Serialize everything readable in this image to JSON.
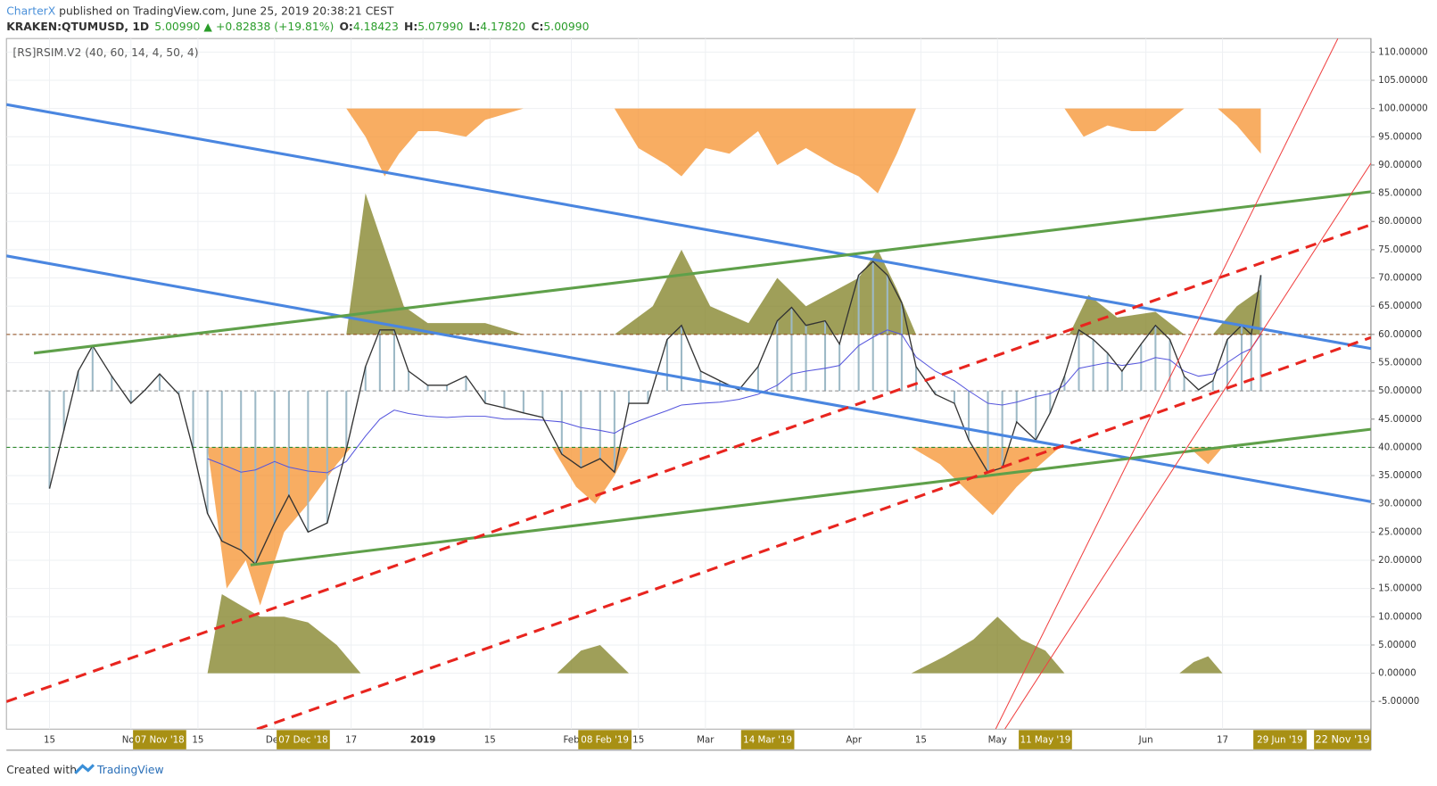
{
  "header": {
    "author": "CharterX",
    "published": " published on TradingView.com, June 25, 2019 20:38:21 CEST",
    "symbol": "KRAKEN:QTUMUSD, 1D",
    "last": "5.00990",
    "arrow": "▲",
    "change": "+0.82838 (+19.81%)",
    "o_label": "O:",
    "o": "4.18423",
    "h_label": "H:",
    "h": "5.07990",
    "l_label": "L:",
    "l": "4.17820",
    "c_label": "C:",
    "c": "5.00990"
  },
  "footer": {
    "created": "Created with",
    "brand": "TradingView"
  },
  "chart_data": {
    "type": "line",
    "title": "[RS]RSIM.V2 (40, 60, 14, 4, 50, 4)",
    "xlim": [
      "2018-10-06",
      "2019-07-18"
    ],
    "ylim": [
      -9.9,
      112.4
    ],
    "yticks": [
      {
        "value": 110,
        "label": "110.00000"
      },
      {
        "value": 105,
        "label": "105.00000"
      },
      {
        "value": 100,
        "label": "100.00000"
      },
      {
        "value": 95,
        "label": "95.00000"
      },
      {
        "value": 90,
        "label": "90.00000"
      },
      {
        "value": 85,
        "label": "85.00000"
      },
      {
        "value": 80,
        "label": "80.00000"
      },
      {
        "value": 75,
        "label": "75.00000"
      },
      {
        "value": 70,
        "label": "70.00000"
      },
      {
        "value": 65,
        "label": "65.00000"
      },
      {
        "value": 60,
        "label": "60.00000"
      },
      {
        "value": 55,
        "label": "55.00000"
      },
      {
        "value": 50,
        "label": "50.00000"
      },
      {
        "value": 45,
        "label": "45.00000"
      },
      {
        "value": 40,
        "label": "40.00000"
      },
      {
        "value": 35,
        "label": "35.00000"
      },
      {
        "value": 30,
        "label": "30.00000"
      },
      {
        "value": 25,
        "label": "25.00000"
      },
      {
        "value": 20,
        "label": "20.00000"
      },
      {
        "value": 15,
        "label": "15.00000"
      },
      {
        "value": 10,
        "label": "10.00000"
      },
      {
        "value": 5,
        "label": "5.00000"
      },
      {
        "value": 0,
        "label": "0.00000"
      },
      {
        "value": -5,
        "label": "-5.00000"
      }
    ],
    "xticks": [
      {
        "value": "2018-10-15",
        "label": "15"
      },
      {
        "value": "2018-11-01",
        "label": "Nov"
      },
      {
        "value": "2018-11-15",
        "label": "15"
      },
      {
        "value": "2018-12-01",
        "label": "Dec"
      },
      {
        "value": "2018-12-17",
        "label": "17"
      },
      {
        "value": "2019-01-01",
        "label": "2019"
      },
      {
        "value": "2019-01-15",
        "label": "15"
      },
      {
        "value": "2019-02-01",
        "label": "Feb"
      },
      {
        "value": "2019-02-15",
        "label": "15"
      },
      {
        "value": "2019-03-01",
        "label": "Mar"
      },
      {
        "value": "2019-04-01",
        "label": "Apr"
      },
      {
        "value": "2019-04-15",
        "label": "15"
      },
      {
        "value": "2019-05-01",
        "label": "May"
      },
      {
        "value": "2019-06-01",
        "label": "Jun"
      },
      {
        "value": "2019-06-17",
        "label": "17"
      }
    ],
    "highlight_xticks": [
      {
        "value": "2018-11-07",
        "label": "07 Nov '18"
      },
      {
        "value": "2018-12-07",
        "label": "07 Dec '18"
      },
      {
        "value": "2019-02-08",
        "label": "08 Feb '19"
      },
      {
        "value": "2019-03-14",
        "label": "14 Mar '19"
      },
      {
        "value": "2019-05-11",
        "label": "11 May '19"
      },
      {
        "value": "2019-06-29",
        "label": "29 Jun '19"
      }
    ],
    "offscreen_label": "22 Nov '19",
    "levels": [
      {
        "value": 60,
        "color": "#8b4513"
      },
      {
        "value": 50,
        "color": "#888888"
      },
      {
        "value": 40,
        "color": "#2e8b2e"
      }
    ],
    "histogram_color": "#9db9c6",
    "x": [
      "2018-10-15",
      "2018-10-18",
      "2018-10-21",
      "2018-10-24",
      "2018-10-28",
      "2018-11-01",
      "2018-11-04",
      "2018-11-07",
      "2018-11-11",
      "2018-11-14",
      "2018-11-17",
      "2018-11-20",
      "2018-11-24",
      "2018-11-27",
      "2018-12-01",
      "2018-12-04",
      "2018-12-08",
      "2018-12-12",
      "2018-12-16",
      "2018-12-20",
      "2018-12-23",
      "2018-12-26",
      "2018-12-29",
      "2019-01-02",
      "2019-01-06",
      "2019-01-10",
      "2019-01-14",
      "2019-01-18",
      "2019-01-22",
      "2019-01-26",
      "2019-01-30",
      "2019-02-03",
      "2019-02-07",
      "2019-02-10",
      "2019-02-13",
      "2019-02-17",
      "2019-02-21",
      "2019-02-24",
      "2019-02-28",
      "2019-03-04",
      "2019-03-08",
      "2019-03-12",
      "2019-03-16",
      "2019-03-19",
      "2019-03-22",
      "2019-03-26",
      "2019-03-29",
      "2019-04-02",
      "2019-04-05",
      "2019-04-08",
      "2019-04-11",
      "2019-04-14",
      "2019-04-18",
      "2019-04-22",
      "2019-04-25",
      "2019-04-29",
      "2019-05-02",
      "2019-05-05",
      "2019-05-09",
      "2019-05-12",
      "2019-05-15",
      "2019-05-18",
      "2019-05-21",
      "2019-05-24",
      "2019-05-27",
      "2019-05-31",
      "2019-06-03",
      "2019-06-06",
      "2019-06-09",
      "2019-06-12",
      "2019-06-15",
      "2019-06-18",
      "2019-06-21",
      "2019-06-23",
      "2019-06-25"
    ],
    "series": [
      {
        "color": "#333333",
        "values": [
          32.7,
          43,
          53.5,
          58,
          52.6,
          47.8,
          50.2,
          53,
          49.4,
          39.6,
          28.3,
          23.4,
          21.8,
          19.3,
          26.6,
          31.5,
          25,
          26.6,
          39.6,
          54.3,
          60.8,
          60.8,
          53.5,
          51,
          51,
          52.6,
          47.8,
          47,
          46.1,
          45.3,
          38.8,
          36.4,
          38,
          35.6,
          47.8,
          47.8,
          59.1,
          61.6,
          53.5,
          51.8,
          50.2,
          54.3,
          62.4,
          64.8,
          61.6,
          62.4,
          58.3,
          70.5,
          72.9,
          70.5,
          65.6,
          54.3,
          49.4,
          47.8,
          41.3,
          35.6,
          36.4,
          44.5,
          41.3,
          46.1,
          52.6,
          60.8,
          59.1,
          56.7,
          53.5,
          58.3,
          61.6,
          59.1,
          52.6,
          50.2,
          51.8,
          59.1,
          61.6,
          60,
          70.5
        ]
      },
      {
        "color": "#5555dd",
        "values": [
          null,
          null,
          null,
          null,
          null,
          null,
          null,
          null,
          null,
          null,
          38,
          37,
          35.6,
          36,
          37.5,
          36.5,
          35.8,
          35.5,
          37.5,
          42,
          45,
          46.6,
          46,
          45.5,
          45.3,
          45.5,
          45.5,
          45,
          45,
          44.8,
          44.5,
          43.5,
          43,
          42.5,
          44,
          45.3,
          46.5,
          47.5,
          47.8,
          48,
          48.5,
          49.4,
          51,
          53,
          53.5,
          54,
          54.5,
          58,
          59.5,
          60.8,
          60,
          56,
          53.5,
          51.8,
          50,
          47.8,
          47.5,
          48,
          49,
          49.5,
          51,
          54,
          54.5,
          55,
          54.5,
          55,
          55.9,
          55.5,
          53.5,
          52.6,
          53,
          55,
          56.7,
          57.5,
          60
        ]
      }
    ],
    "areas": [
      {
        "color": "#f5922e",
        "base": 100,
        "x": [
          "2018-12-16",
          "2018-12-20",
          "2018-12-24",
          "2018-12-27",
          "2018-12-31",
          "2019-01-04",
          "2019-01-10",
          "2019-01-14",
          "2019-01-22",
          "2019-02-01"
        ],
        "values": [
          100,
          95,
          88,
          92,
          96,
          96,
          95,
          98,
          100,
          100
        ]
      },
      {
        "color": "#f5922e",
        "base": 100,
        "x": [
          "2019-02-10",
          "2019-02-15",
          "2019-02-21",
          "2019-02-24",
          "2019-03-01",
          "2019-03-06",
          "2019-03-12",
          "2019-03-16",
          "2019-03-22",
          "2019-03-28",
          "2019-04-02",
          "2019-04-06",
          "2019-04-10",
          "2019-04-14"
        ],
        "values": [
          100,
          93,
          90,
          88,
          93,
          92,
          96,
          90,
          93,
          90,
          88,
          85,
          92,
          100
        ]
      },
      {
        "color": "#f5922e",
        "base": 100,
        "x": [
          "2019-05-15",
          "2019-05-19",
          "2019-05-24",
          "2019-05-29",
          "2019-06-03",
          "2019-06-09"
        ],
        "values": [
          100,
          95,
          97,
          96,
          96,
          100
        ]
      },
      {
        "color": "#f5922e",
        "base": 100,
        "x": [
          "2019-06-16",
          "2019-06-20",
          "2019-06-25"
        ],
        "values": [
          100,
          97,
          92
        ]
      },
      {
        "color": "#7f7f22",
        "base": 60,
        "x": [
          "2018-12-16",
          "2018-12-20",
          "2018-12-24",
          "2018-12-28",
          "2019-01-02",
          "2019-01-14",
          "2019-01-22"
        ],
        "values": [
          60,
          85,
          75,
          65,
          62,
          62,
          60
        ]
      },
      {
        "color": "#7f7f22",
        "base": 60,
        "x": [
          "2019-02-10",
          "2019-02-18",
          "2019-02-24",
          "2019-03-02",
          "2019-03-10",
          "2019-03-16",
          "2019-03-22",
          "2019-04-02",
          "2019-04-06",
          "2019-04-10",
          "2019-04-14"
        ],
        "values": [
          60,
          65,
          75,
          65,
          62,
          70,
          65,
          70,
          75,
          68,
          60
        ]
      },
      {
        "color": "#7f7f22",
        "base": 60,
        "x": [
          "2019-05-16",
          "2019-05-20",
          "2019-05-26",
          "2019-06-03",
          "2019-06-09"
        ],
        "values": [
          60,
          67,
          63,
          64,
          60
        ]
      },
      {
        "color": "#7f7f22",
        "base": 60,
        "x": [
          "2019-06-15",
          "2019-06-20",
          "2019-06-25"
        ],
        "values": [
          60,
          65,
          68
        ]
      },
      {
        "color": "#f5922e",
        "base": 40,
        "x": [
          "2018-11-17",
          "2018-11-21",
          "2018-11-25",
          "2018-11-28",
          "2018-12-03",
          "2018-12-08",
          "2018-12-14",
          "2018-12-17"
        ],
        "values": [
          40,
          15,
          20,
          12,
          25,
          30,
          37,
          40
        ]
      },
      {
        "color": "#f5922e",
        "base": 40,
        "x": [
          "2019-01-28",
          "2019-02-02",
          "2019-02-06",
          "2019-02-10",
          "2019-02-13"
        ],
        "values": [
          40,
          33,
          30,
          35,
          40
        ]
      },
      {
        "color": "#f5922e",
        "base": 40,
        "x": [
          "2019-04-13",
          "2019-04-19",
          "2019-04-25",
          "2019-04-30",
          "2019-05-05",
          "2019-05-10",
          "2019-05-14"
        ],
        "values": [
          40,
          37,
          32,
          28,
          33,
          37,
          40
        ]
      },
      {
        "color": "#f5922e",
        "base": 40,
        "x": [
          "2019-06-10",
          "2019-06-14",
          "2019-06-17"
        ],
        "values": [
          40,
          37,
          40
        ]
      },
      {
        "color": "#7f7f22",
        "base": 0,
        "x": [
          "2018-11-17",
          "2018-11-20",
          "2018-11-24",
          "2018-11-28",
          "2018-12-03",
          "2018-12-08",
          "2018-12-14",
          "2018-12-19"
        ],
        "values": [
          0,
          14,
          12,
          10,
          10,
          9,
          5,
          0
        ]
      },
      {
        "color": "#7f7f22",
        "base": 0,
        "x": [
          "2019-01-29",
          "2019-02-03",
          "2019-02-07",
          "2019-02-13"
        ],
        "values": [
          0,
          4,
          5,
          0
        ]
      },
      {
        "color": "#7f7f22",
        "base": 0,
        "x": [
          "2019-04-13",
          "2019-04-20",
          "2019-04-26",
          "2019-05-01",
          "2019-05-06",
          "2019-05-11",
          "2019-05-15"
        ],
        "values": [
          0,
          3,
          6,
          10,
          6,
          4,
          0
        ]
      },
      {
        "color": "#7f7f22",
        "base": 0,
        "x": [
          "2019-06-08",
          "2019-06-11",
          "2019-06-14",
          "2019-06-17"
        ],
        "values": [
          0,
          2,
          3,
          0
        ]
      }
    ]
  }
}
